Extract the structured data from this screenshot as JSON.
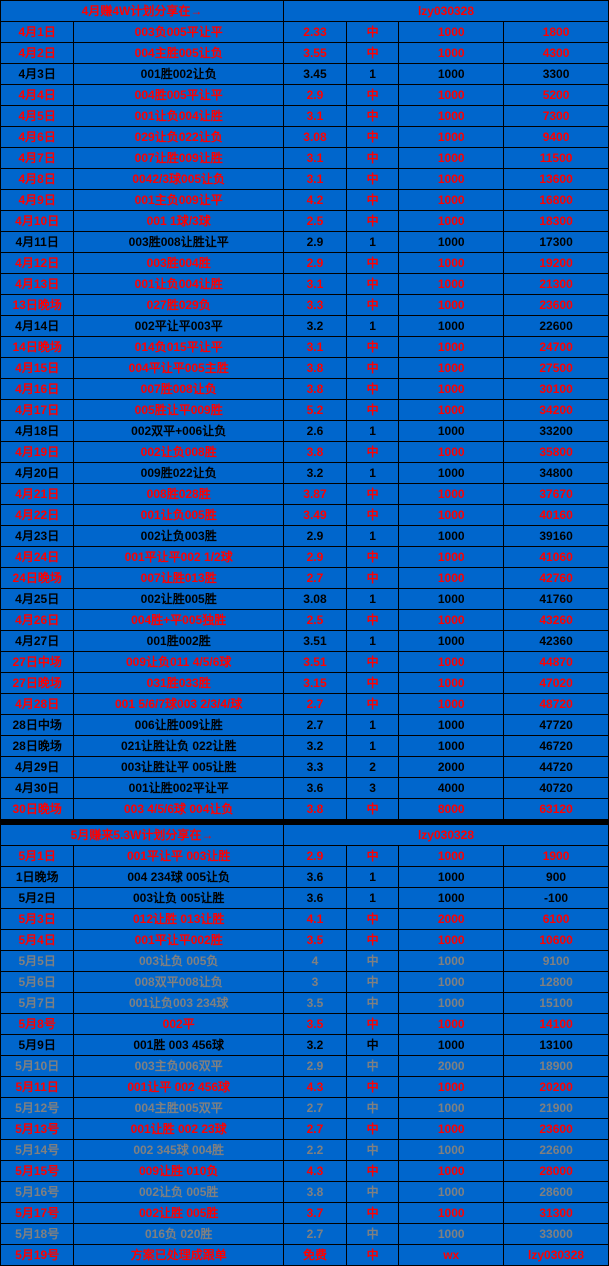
{
  "header1": {
    "title": "4月赚4W计划分享在→",
    "id": "lzy030328",
    "color": "red"
  },
  "header2": {
    "title": "5月赚来5.3W计划分享在→",
    "id": "lzy030328",
    "color": "red"
  },
  "bg": "#0066cc",
  "rows1": [
    {
      "date": "4月1日",
      "bet": "003负005平让平",
      "odds": "2.33",
      "res": "中",
      "stake": "1000",
      "total": "1800",
      "color": "red"
    },
    {
      "date": "4月2日",
      "bet": "004主胜005让负",
      "odds": "3.55",
      "res": "中",
      "stake": "1000",
      "total": "4300",
      "color": "red"
    },
    {
      "date": "4月3日",
      "bet": "001胜002让负",
      "odds": "3.45",
      "res": "1",
      "stake": "1000",
      "total": "3300",
      "color": "black"
    },
    {
      "date": "4月4日",
      "bet": "004胜005平让平",
      "odds": "2.9",
      "res": "中",
      "stake": "1000",
      "total": "5200",
      "color": "red"
    },
    {
      "date": "4月5日",
      "bet": "001让负004让胜",
      "odds": "3.1",
      "res": "中",
      "stake": "1000",
      "total": "7300",
      "color": "red"
    },
    {
      "date": "4月6日",
      "bet": "029让负022让负",
      "odds": "3.08",
      "res": "中",
      "stake": "1000",
      "total": "9400",
      "color": "red"
    },
    {
      "date": "4月7日",
      "bet": "007让胜009让胜",
      "odds": "3.1",
      "res": "中",
      "stake": "1000",
      "total": "11500",
      "color": "red"
    },
    {
      "date": "4月8日",
      "bet": "0042/3球005让负",
      "odds": "3.1",
      "res": "中",
      "stake": "1000",
      "total": "13600",
      "color": "red"
    },
    {
      "date": "4月9日",
      "bet": "001主负009让平",
      "odds": "4.2",
      "res": "中",
      "stake": "1000",
      "total": "16800",
      "color": "red"
    },
    {
      "date": "4月10日",
      "bet": "001 1球/3球",
      "odds": "2.5",
      "res": "中",
      "stake": "1000",
      "total": "18300",
      "color": "red"
    },
    {
      "date": "4月11日",
      "bet": "003胜008让胜让平",
      "odds": "2.9",
      "res": "1",
      "stake": "1000",
      "total": "17300",
      "color": "black"
    },
    {
      "date": "4月12日",
      "bet": "003胜004胜",
      "odds": "2.9",
      "res": "中",
      "stake": "1000",
      "total": "19200",
      "color": "red"
    },
    {
      "date": "4月13日",
      "bet": "001让负004让胜",
      "odds": "3.1",
      "res": "中",
      "stake": "1000",
      "total": "21300",
      "color": "red"
    },
    {
      "date": "13日晚场",
      "bet": "027胜029负",
      "odds": "3.3",
      "res": "中",
      "stake": "1000",
      "total": "23600",
      "color": "red"
    },
    {
      "date": "4月14日",
      "bet": "002平让平003平",
      "odds": "3.2",
      "res": "1",
      "stake": "1000",
      "total": "22600",
      "color": "black"
    },
    {
      "date": "14日晚场",
      "bet": "014负015平让平",
      "odds": "3.1",
      "res": "中",
      "stake": "1000",
      "total": "24700",
      "color": "red"
    },
    {
      "date": "4月15日",
      "bet": "004平让平005主胜",
      "odds": "3.8",
      "res": "中",
      "stake": "1000",
      "total": "27500",
      "color": "red"
    },
    {
      "date": "4月16日",
      "bet": "007胜008让负",
      "odds": "3.8",
      "res": "中",
      "stake": "1000",
      "total": "30100",
      "color": "red"
    },
    {
      "date": "4月17日",
      "bet": "005胜让平009胜",
      "odds": "5.2",
      "res": "中",
      "stake": "1000",
      "total": "34200",
      "color": "red"
    },
    {
      "date": "4月18日",
      "bet": "002双平+006让负",
      "odds": "2.6",
      "res": "1",
      "stake": "1000",
      "total": "33200",
      "color": "black"
    },
    {
      "date": "4月19日",
      "bet": "002让负008胜",
      "odds": "3.8",
      "res": "中",
      "stake": "1000",
      "total": "35800",
      "color": "red"
    },
    {
      "date": "4月20日",
      "bet": "009胜022让负",
      "odds": "3.2",
      "res": "1",
      "stake": "1000",
      "total": "34800",
      "color": "black"
    },
    {
      "date": "4月21日",
      "bet": "008胜028胜",
      "odds": "3.87",
      "res": "中",
      "stake": "1000",
      "total": "37670",
      "color": "red"
    },
    {
      "date": "4月22日",
      "bet": "001让负005胜",
      "odds": "3.49",
      "res": "中",
      "stake": "1000",
      "total": "40160",
      "color": "red"
    },
    {
      "date": "4月23日",
      "bet": "002让负003胜",
      "odds": "2.9",
      "res": "1",
      "stake": "1000",
      "total": "39160",
      "color": "black"
    },
    {
      "date": "4月24日",
      "bet": "001平让平002 1/2球",
      "odds": "2.9",
      "res": "中",
      "stake": "1000",
      "total": "41060",
      "color": "red"
    },
    {
      "date": "24日晚场",
      "bet": "007让胜013胜",
      "odds": "2.7",
      "res": "中",
      "stake": "1000",
      "total": "42760",
      "color": "red"
    },
    {
      "date": "4月25日",
      "bet": "002让胜005胜",
      "odds": "3.08",
      "res": "1",
      "stake": "1000",
      "total": "41760",
      "color": "black"
    },
    {
      "date": "4月26日",
      "bet": "004胜+平005独胜",
      "odds": "2.5",
      "res": "中",
      "stake": "1000",
      "total": "43260",
      "color": "red"
    },
    {
      "date": "4月27日",
      "bet": "001胜002胜",
      "odds": "3.51",
      "res": "1",
      "stake": "1000",
      "total": "42360",
      "color": "black"
    },
    {
      "date": "27日中场",
      "bet": "009让负011 4/5/6球",
      "odds": "3.51",
      "res": "中",
      "stake": "1000",
      "total": "44870",
      "color": "red"
    },
    {
      "date": "27日晚场",
      "bet": "031胜033胜",
      "odds": "3.15",
      "res": "中",
      "stake": "1000",
      "total": "47020",
      "color": "red"
    },
    {
      "date": "4月28日",
      "bet": "001 5/6/7球003 2/3/4/球",
      "odds": "2.7",
      "res": "中",
      "stake": "1000",
      "total": "48720",
      "color": "red"
    },
    {
      "date": "28日中场",
      "bet": "006让胜009让胜",
      "odds": "2.7",
      "res": "1",
      "stake": "1000",
      "total": "47720",
      "color": "black"
    },
    {
      "date": "28日晚场",
      "bet": "021让胜让负 022让胜",
      "odds": "3.2",
      "res": "1",
      "stake": "1000",
      "total": "46720",
      "color": "black"
    },
    {
      "date": "4月29日",
      "bet": "003让胜让平 005让胜",
      "odds": "3.3",
      "res": "2",
      "stake": "2000",
      "total": "44720",
      "color": "black"
    },
    {
      "date": "4月30日",
      "bet": "001让胜002平让平",
      "odds": "3.6",
      "res": "3",
      "stake": "4000",
      "total": "40720",
      "color": "black"
    },
    {
      "date": "30日晚场",
      "bet": "003 4/5/6球 004让负",
      "odds": "3.8",
      "res": "中",
      "stake": "8000",
      "total": "63120",
      "color": "red"
    }
  ],
  "rows2": [
    {
      "date": "5月1日",
      "bet": "001平让平 003让胜",
      "odds": "2.9",
      "res": "中",
      "stake": "1000",
      "total": "1900",
      "color": "red"
    },
    {
      "date": "1日晚场",
      "bet": "004 234球 005让负",
      "odds": "3.6",
      "res": "1",
      "stake": "1000",
      "total": "900",
      "color": "black"
    },
    {
      "date": "5月2日",
      "bet": "003让负 005让胜",
      "odds": "3.6",
      "res": "1",
      "stake": "1000",
      "total": "-100",
      "color": "black"
    },
    {
      "date": "5月3日",
      "bet": "012让胜 013让胜",
      "odds": "4.1",
      "res": "中",
      "stake": "2000",
      "total": "6100",
      "color": "red"
    },
    {
      "date": "5月4日",
      "bet": "001平让平002胜",
      "odds": "3.5",
      "res": "中",
      "stake": "1000",
      "total": "10600",
      "color": "red"
    },
    {
      "date": "5月5日",
      "bet": "003让负 005负",
      "odds": "4",
      "res": "中",
      "stake": "1000",
      "total": "9100",
      "color": "gray"
    },
    {
      "date": "5月6日",
      "bet": "008双平008让负",
      "odds": "3",
      "res": "中",
      "stake": "1000",
      "total": "12800",
      "color": "gray"
    },
    {
      "date": "5月7日",
      "bet": "001让负003 234球",
      "odds": "3.5",
      "res": "中",
      "stake": "1000",
      "total": "15100",
      "color": "gray"
    },
    {
      "date": "5月8号",
      "bet": "002平",
      "odds": "3.5",
      "res": "中",
      "stake": "1000",
      "total": "14100",
      "color": "red"
    },
    {
      "date": "5月9日",
      "bet": "001胜 003 456球",
      "odds": "3.2",
      "res": "中",
      "stake": "1000",
      "total": "13100",
      "color": "black"
    },
    {
      "date": "5月10日",
      "bet": "003主负006双平",
      "odds": "2.9",
      "res": "中",
      "stake": "2000",
      "total": "18900",
      "color": "gray"
    },
    {
      "date": "5月11日",
      "bet": "001让平 002 456球",
      "odds": "4.3",
      "res": "中",
      "stake": "1000",
      "total": "20200",
      "color": "red"
    },
    {
      "date": "5月12号",
      "bet": "004主胜005双平",
      "odds": "2.7",
      "res": "中",
      "stake": "1000",
      "total": "21900",
      "color": "gray"
    },
    {
      "date": "5月13号",
      "bet": "001让胜 002 23球",
      "odds": "2.7",
      "res": "中",
      "stake": "1000",
      "total": "23600",
      "color": "red"
    },
    {
      "date": "5月14号",
      "bet": "002 345球 004胜",
      "odds": "2.2",
      "res": "中",
      "stake": "1000",
      "total": "22600",
      "color": "gray"
    },
    {
      "date": "5月15号",
      "bet": "009让胜 010负",
      "odds": "4.3",
      "res": "中",
      "stake": "1000",
      "total": "28000",
      "color": "red"
    },
    {
      "date": "5月16号",
      "bet": "002让负 005胜",
      "odds": "3.8",
      "res": "中",
      "stake": "1000",
      "total": "28600",
      "color": "gray"
    },
    {
      "date": "5月17号",
      "bet": "002让胜 005胜",
      "odds": "3.7",
      "res": "中",
      "stake": "1000",
      "total": "31300",
      "color": "red"
    },
    {
      "date": "5月18号",
      "bet": "016负 020胜",
      "odds": "2.7",
      "res": "中",
      "stake": "1000",
      "total": "33000",
      "color": "gray"
    },
    {
      "date": "5月19号",
      "bet": "方案已处理成跟单",
      "odds": "免费",
      "res": "中",
      "stake": "wx",
      "total": "lzy030328",
      "color": "red"
    }
  ]
}
